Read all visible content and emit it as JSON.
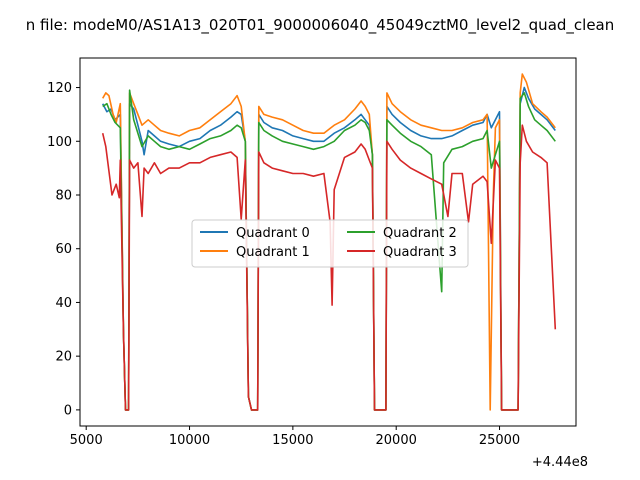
{
  "chart_data": {
    "type": "line",
    "title": "n file: modeM0/AS1A13_020T01_9000006040_45049cztM0_level2_quad_clean",
    "xlabel": "",
    "ylabel": "",
    "x_offset_label": "+4.44e8",
    "xlim": [
      4700,
      28700
    ],
    "ylim": [
      -6,
      131
    ],
    "x_ticks": [
      5000,
      10000,
      15000,
      20000,
      25000
    ],
    "y_ticks": [
      0,
      20,
      40,
      60,
      80,
      100,
      120
    ],
    "grid": false,
    "legend": {
      "placement": "center",
      "columns": 2
    },
    "series": [
      {
        "name": "Quadrant 0",
        "color": "#1f77b4",
        "points": [
          [
            5800,
            114
          ],
          [
            6000,
            111
          ],
          [
            6200,
            112
          ],
          [
            6400,
            108
          ],
          [
            6650,
            110
          ],
          [
            6800,
            30
          ],
          [
            6900,
            0
          ],
          [
            7050,
            0
          ],
          [
            7100,
            114
          ],
          [
            7300,
            112
          ],
          [
            7500,
            106
          ],
          [
            7700,
            100
          ],
          [
            7800,
            95
          ],
          [
            8000,
            104
          ],
          [
            8300,
            102
          ],
          [
            8600,
            100
          ],
          [
            9000,
            99
          ],
          [
            9500,
            98
          ],
          [
            10000,
            100
          ],
          [
            10500,
            101
          ],
          [
            11000,
            104
          ],
          [
            11500,
            106
          ],
          [
            12000,
            109
          ],
          [
            12300,
            111
          ],
          [
            12500,
            110
          ],
          [
            12700,
            100
          ],
          [
            12850,
            5
          ],
          [
            13000,
            0
          ],
          [
            13300,
            0
          ],
          [
            13350,
            110
          ],
          [
            13600,
            107
          ],
          [
            14000,
            105
          ],
          [
            14500,
            104
          ],
          [
            15000,
            102
          ],
          [
            15500,
            101
          ],
          [
            16000,
            100
          ],
          [
            16500,
            100
          ],
          [
            17000,
            103
          ],
          [
            17500,
            105
          ],
          [
            18000,
            108
          ],
          [
            18300,
            110
          ],
          [
            18500,
            108
          ],
          [
            18700,
            106
          ],
          [
            18850,
            95
          ],
          [
            18950,
            0
          ],
          [
            19200,
            0
          ],
          [
            19500,
            0
          ],
          [
            19550,
            113
          ],
          [
            19800,
            110
          ],
          [
            20200,
            107
          ],
          [
            20700,
            104
          ],
          [
            21200,
            102
          ],
          [
            21700,
            101
          ],
          [
            22200,
            101
          ],
          [
            22700,
            102
          ],
          [
            23200,
            104
          ],
          [
            23700,
            106
          ],
          [
            24200,
            107
          ],
          [
            24400,
            110
          ],
          [
            24600,
            105
          ],
          [
            24800,
            108
          ],
          [
            25000,
            111
          ],
          [
            25100,
            0
          ],
          [
            25400,
            0
          ],
          [
            25700,
            0
          ],
          [
            25900,
            0
          ],
          [
            26000,
            114
          ],
          [
            26200,
            120
          ],
          [
            26400,
            116
          ],
          [
            26700,
            112
          ],
          [
            27000,
            110
          ],
          [
            27300,
            108
          ],
          [
            27700,
            104
          ]
        ]
      },
      {
        "name": "Quadrant 1",
        "color": "#ff7f0e",
        "points": [
          [
            5800,
            116
          ],
          [
            5950,
            118
          ],
          [
            6100,
            117
          ],
          [
            6300,
            110
          ],
          [
            6450,
            107
          ],
          [
            6650,
            114
          ],
          [
            6800,
            30
          ],
          [
            6900,
            0
          ],
          [
            7050,
            0
          ],
          [
            7100,
            118
          ],
          [
            7300,
            114
          ],
          [
            7500,
            110
          ],
          [
            7700,
            106
          ],
          [
            8000,
            108
          ],
          [
            8300,
            106
          ],
          [
            8600,
            104
          ],
          [
            9000,
            103
          ],
          [
            9500,
            102
          ],
          [
            10000,
            104
          ],
          [
            10500,
            105
          ],
          [
            11000,
            108
          ],
          [
            11500,
            111
          ],
          [
            12000,
            114
          ],
          [
            12300,
            117
          ],
          [
            12500,
            113
          ],
          [
            12700,
            100
          ],
          [
            12850,
            5
          ],
          [
            13000,
            0
          ],
          [
            13300,
            0
          ],
          [
            13350,
            113
          ],
          [
            13600,
            110
          ],
          [
            14000,
            109
          ],
          [
            14500,
            108
          ],
          [
            15000,
            106
          ],
          [
            15500,
            104
          ],
          [
            16000,
            103
          ],
          [
            16500,
            103
          ],
          [
            17000,
            106
          ],
          [
            17500,
            108
          ],
          [
            18000,
            112
          ],
          [
            18300,
            115
          ],
          [
            18500,
            113
          ],
          [
            18700,
            110
          ],
          [
            18850,
            95
          ],
          [
            18950,
            0
          ],
          [
            19200,
            0
          ],
          [
            19500,
            0
          ],
          [
            19550,
            118
          ],
          [
            19800,
            114
          ],
          [
            20200,
            111
          ],
          [
            20700,
            108
          ],
          [
            21200,
            106
          ],
          [
            21700,
            105
          ],
          [
            22200,
            104
          ],
          [
            22700,
            104
          ],
          [
            23200,
            105
          ],
          [
            23700,
            107
          ],
          [
            24200,
            108
          ],
          [
            24400,
            110
          ],
          [
            24550,
            0
          ],
          [
            24700,
            80
          ],
          [
            24800,
            105
          ],
          [
            25000,
            108
          ],
          [
            25100,
            0
          ],
          [
            25400,
            0
          ],
          [
            25700,
            0
          ],
          [
            25900,
            0
          ],
          [
            26000,
            118
          ],
          [
            26100,
            125
          ],
          [
            26300,
            122
          ],
          [
            26600,
            114
          ],
          [
            27000,
            111
          ],
          [
            27300,
            109
          ],
          [
            27700,
            105
          ]
        ]
      },
      {
        "name": "Quadrant 2",
        "color": "#2ca02c",
        "points": [
          [
            5800,
            113
          ],
          [
            6000,
            114
          ],
          [
            6200,
            110
          ],
          [
            6400,
            107
          ],
          [
            6650,
            105
          ],
          [
            6800,
            30
          ],
          [
            6900,
            0
          ],
          [
            7050,
            0
          ],
          [
            7100,
            119
          ],
          [
            7300,
            108
          ],
          [
            7500,
            103
          ],
          [
            7700,
            98
          ],
          [
            8000,
            102
          ],
          [
            8300,
            100
          ],
          [
            8600,
            98
          ],
          [
            9000,
            97
          ],
          [
            9500,
            98
          ],
          [
            10000,
            97
          ],
          [
            10500,
            99
          ],
          [
            11000,
            101
          ],
          [
            11500,
            102
          ],
          [
            12000,
            104
          ],
          [
            12300,
            106
          ],
          [
            12500,
            105
          ],
          [
            12700,
            100
          ],
          [
            12850,
            5
          ],
          [
            13000,
            0
          ],
          [
            13300,
            0
          ],
          [
            13350,
            107
          ],
          [
            13600,
            104
          ],
          [
            14000,
            102
          ],
          [
            14500,
            100
          ],
          [
            15000,
            99
          ],
          [
            15500,
            98
          ],
          [
            16000,
            97
          ],
          [
            16500,
            98
          ],
          [
            17000,
            100
          ],
          [
            17500,
            104
          ],
          [
            18000,
            106
          ],
          [
            18300,
            108
          ],
          [
            18500,
            107
          ],
          [
            18700,
            104
          ],
          [
            18850,
            95
          ],
          [
            18950,
            0
          ],
          [
            19200,
            0
          ],
          [
            19500,
            0
          ],
          [
            19550,
            108
          ],
          [
            19800,
            106
          ],
          [
            20200,
            103
          ],
          [
            20700,
            100
          ],
          [
            21200,
            98
          ],
          [
            21700,
            95
          ],
          [
            22200,
            44
          ],
          [
            22300,
            92
          ],
          [
            22700,
            97
          ],
          [
            23200,
            98
          ],
          [
            23700,
            100
          ],
          [
            24200,
            101
          ],
          [
            24400,
            104
          ],
          [
            24600,
            90
          ],
          [
            24800,
            95
          ],
          [
            25000,
            100
          ],
          [
            25100,
            0
          ],
          [
            25400,
            0
          ],
          [
            25700,
            0
          ],
          [
            25900,
            0
          ],
          [
            26000,
            116
          ],
          [
            26200,
            118
          ],
          [
            26400,
            113
          ],
          [
            26700,
            108
          ],
          [
            27000,
            106
          ],
          [
            27300,
            104
          ],
          [
            27700,
            100
          ]
        ]
      },
      {
        "name": "Quadrant 3",
        "color": "#d62728",
        "points": [
          [
            5800,
            103
          ],
          [
            5950,
            98
          ],
          [
            6100,
            89
          ],
          [
            6250,
            80
          ],
          [
            6450,
            84
          ],
          [
            6600,
            79
          ],
          [
            6650,
            93
          ],
          [
            6800,
            30
          ],
          [
            6900,
            0
          ],
          [
            7050,
            0
          ],
          [
            7100,
            93
          ],
          [
            7300,
            90
          ],
          [
            7500,
            92
          ],
          [
            7700,
            72
          ],
          [
            7800,
            90
          ],
          [
            8000,
            88
          ],
          [
            8300,
            92
          ],
          [
            8600,
            88
          ],
          [
            9000,
            90
          ],
          [
            9500,
            90
          ],
          [
            10000,
            92
          ],
          [
            10500,
            92
          ],
          [
            11000,
            94
          ],
          [
            11500,
            95
          ],
          [
            12000,
            96
          ],
          [
            12300,
            94
          ],
          [
            12500,
            71
          ],
          [
            12700,
            93
          ],
          [
            12850,
            5
          ],
          [
            13000,
            0
          ],
          [
            13300,
            0
          ],
          [
            13350,
            96
          ],
          [
            13600,
            92
          ],
          [
            14000,
            90
          ],
          [
            14500,
            89
          ],
          [
            15000,
            88
          ],
          [
            15500,
            88
          ],
          [
            16000,
            87
          ],
          [
            16500,
            88
          ],
          [
            16800,
            70
          ],
          [
            16900,
            39
          ],
          [
            17000,
            82
          ],
          [
            17500,
            94
          ],
          [
            18000,
            96
          ],
          [
            18300,
            99
          ],
          [
            18500,
            97
          ],
          [
            18700,
            93
          ],
          [
            18850,
            90
          ],
          [
            18950,
            0
          ],
          [
            19200,
            0
          ],
          [
            19500,
            0
          ],
          [
            19550,
            100
          ],
          [
            19800,
            97
          ],
          [
            20200,
            93
          ],
          [
            20700,
            90
          ],
          [
            21200,
            88
          ],
          [
            21700,
            86
          ],
          [
            22200,
            84
          ],
          [
            22500,
            72
          ],
          [
            22700,
            88
          ],
          [
            23200,
            88
          ],
          [
            23500,
            70
          ],
          [
            23700,
            84
          ],
          [
            24200,
            87
          ],
          [
            24400,
            85
          ],
          [
            24600,
            62
          ],
          [
            24800,
            93
          ],
          [
            25000,
            90
          ],
          [
            25100,
            0
          ],
          [
            25400,
            0
          ],
          [
            25700,
            0
          ],
          [
            25900,
            0
          ],
          [
            26000,
            92
          ],
          [
            26100,
            106
          ],
          [
            26300,
            100
          ],
          [
            26600,
            96
          ],
          [
            27000,
            94
          ],
          [
            27300,
            92
          ],
          [
            27700,
            30
          ]
        ]
      }
    ]
  }
}
